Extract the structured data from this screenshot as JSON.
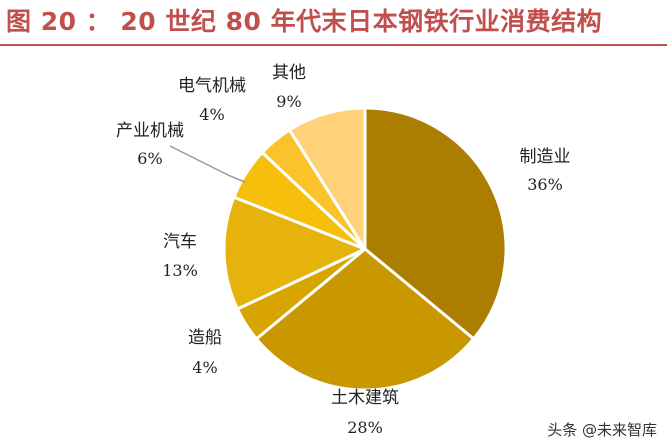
{
  "figure_title": "图 20 ： 20 世纪 80 年代末日本钢铁行业消费结构",
  "watermark": "头条 @未来智库",
  "chart_data": {
    "type": "pie",
    "title": "",
    "slices": [
      {
        "label": "制造业",
        "value": 36,
        "display": "36%",
        "color": "#ab7d00"
      },
      {
        "label": "土木建筑",
        "value": 28,
        "display": "28%",
        "color": "#c99700"
      },
      {
        "label": "造船",
        "value": 4,
        "display": "4%",
        "color": "#d8a400"
      },
      {
        "label": "汽车",
        "value": 13,
        "display": "13%",
        "color": "#e6b20c"
      },
      {
        "label": "产业机械",
        "value": 6,
        "display": "6%",
        "color": "#f5bf0c"
      },
      {
        "label": "电气机械",
        "value": 4,
        "display": "4%",
        "color": "#fbc22b"
      },
      {
        "label": "其他",
        "value": 9,
        "display": "9%",
        "color": "#ffd27a"
      }
    ],
    "start_angle_deg": 0,
    "direction": "clockwise",
    "legend": "none",
    "labels_outside": true
  }
}
